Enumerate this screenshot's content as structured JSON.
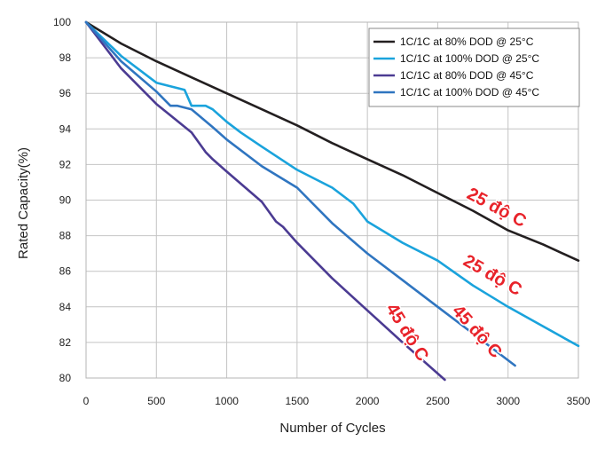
{
  "chart_data": {
    "type": "line",
    "title": "",
    "xlabel": "Number of Cycles",
    "ylabel": "Rated Capacity(%)",
    "xlim": [
      0,
      3500
    ],
    "ylim": [
      80,
      100
    ],
    "xticks": [
      0,
      500,
      1000,
      1500,
      2000,
      2500,
      3000,
      3500
    ],
    "yticks": [
      80,
      82,
      84,
      86,
      88,
      90,
      92,
      94,
      96,
      98,
      100
    ],
    "grid": true,
    "legend_position": "top-right",
    "series": [
      {
        "name": "1C/1C at 80% DOD @ 25°C",
        "color": "#231f20",
        "x": [
          0,
          250,
          500,
          750,
          1000,
          1250,
          1500,
          1750,
          2000,
          2250,
          2500,
          2750,
          3000,
          3250,
          3500
        ],
        "y": [
          100,
          98.8,
          97.8,
          96.9,
          96.0,
          95.1,
          94.2,
          93.2,
          92.3,
          91.4,
          90.4,
          89.4,
          88.3,
          87.5,
          86.6
        ]
      },
      {
        "name": "1C/1C at 100% DOD @ 25°C",
        "color": "#1aa3dc",
        "x": [
          0,
          250,
          500,
          600,
          700,
          750,
          850,
          900,
          1000,
          1100,
          1250,
          1500,
          1750,
          1900,
          2000,
          2250,
          2500,
          2750,
          3000,
          3250,
          3500
        ],
        "y": [
          100,
          98.1,
          96.6,
          96.4,
          96.2,
          95.3,
          95.3,
          95.1,
          94.4,
          93.8,
          93.0,
          91.7,
          90.7,
          89.8,
          88.8,
          87.6,
          86.6,
          85.2,
          84.0,
          82.9,
          81.8
        ]
      },
      {
        "name": "1C/1C at 80% DOD @ 45°C",
        "color": "#4b3b92",
        "x": [
          0,
          250,
          500,
          750,
          850,
          900,
          1000,
          1250,
          1350,
          1400,
          1500,
          1750,
          2000,
          2250,
          2550
        ],
        "y": [
          100,
          97.4,
          95.4,
          93.8,
          92.7,
          92.3,
          91.6,
          89.9,
          88.8,
          88.5,
          87.6,
          85.6,
          83.8,
          82.0,
          79.9
        ]
      },
      {
        "name": "1C/1C at 100% DOD @ 45°C",
        "color": "#2f75c0",
        "x": [
          0,
          250,
          500,
          600,
          650,
          750,
          900,
          1000,
          1250,
          1500,
          1600,
          1750,
          2000,
          2250,
          2500,
          2750,
          3050
        ],
        "y": [
          100,
          97.8,
          96.1,
          95.3,
          95.3,
          95.1,
          94.1,
          93.4,
          91.9,
          90.7,
          89.9,
          88.7,
          87.0,
          85.5,
          84.0,
          82.5,
          80.7
        ]
      }
    ],
    "annotations": [
      {
        "text": "25 độ C",
        "x": 2900,
        "y": 89.3,
        "rotate": 28
      },
      {
        "text": "25 độ C",
        "x": 2870,
        "y": 85.5,
        "rotate": 30
      },
      {
        "text": "45 độ C",
        "x": 2250,
        "y": 82.4,
        "rotate": 58
      },
      {
        "text": "45 độ C",
        "x": 2750,
        "y": 82.4,
        "rotate": 48
      }
    ]
  }
}
